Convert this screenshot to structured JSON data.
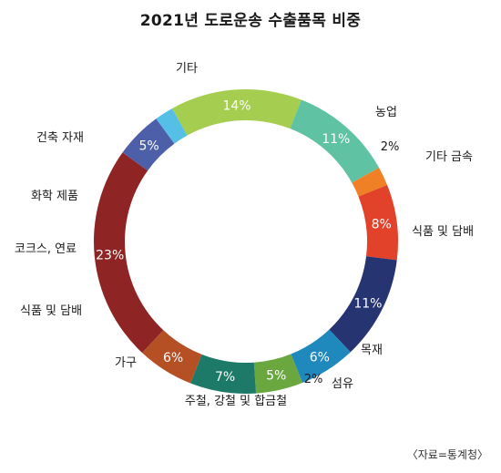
{
  "chart_data": {
    "type": "pie",
    "title": "2021년 도로운송 수출품목 비중",
    "source": "〈자료=통계청〉",
    "slices": [
      {
        "label": "기타",
        "value": 23,
        "display": "23%",
        "color": "#8e2424"
      },
      {
        "label": "농업",
        "value": 5,
        "display": "5%",
        "color": "#4d5fa8"
      },
      {
        "label": "기타 금속",
        "value": 2,
        "display": "2%",
        "color": "#56bfe6"
      },
      {
        "label": "식품 및 담배",
        "value": 14,
        "display": "14%",
        "color": "#a5cd50"
      },
      {
        "label": "목재",
        "value": 11,
        "display": "11%",
        "color": "#5fc2a3"
      },
      {
        "label": "섬유",
        "value": 2,
        "display": "2%",
        "color": "#ef8025"
      },
      {
        "label": "주철, 강철 및 합금철",
        "value": 8,
        "display": "8%",
        "color": "#e2412a"
      },
      {
        "label": "가구",
        "value": 11,
        "display": "11%",
        "color": "#263472"
      },
      {
        "label": "식품 및 담배",
        "value": 6,
        "display": "6%",
        "color": "#1f88bd"
      },
      {
        "label": "코크스, 연료",
        "value": 5,
        "display": "5%",
        "color": "#6aa73f"
      },
      {
        "label": "화학 제품",
        "value": 7,
        "display": "7%",
        "color": "#1e7a68"
      },
      {
        "label": "건축 자재",
        "value": 6,
        "display": "6%",
        "color": "#b54f24"
      }
    ]
  }
}
